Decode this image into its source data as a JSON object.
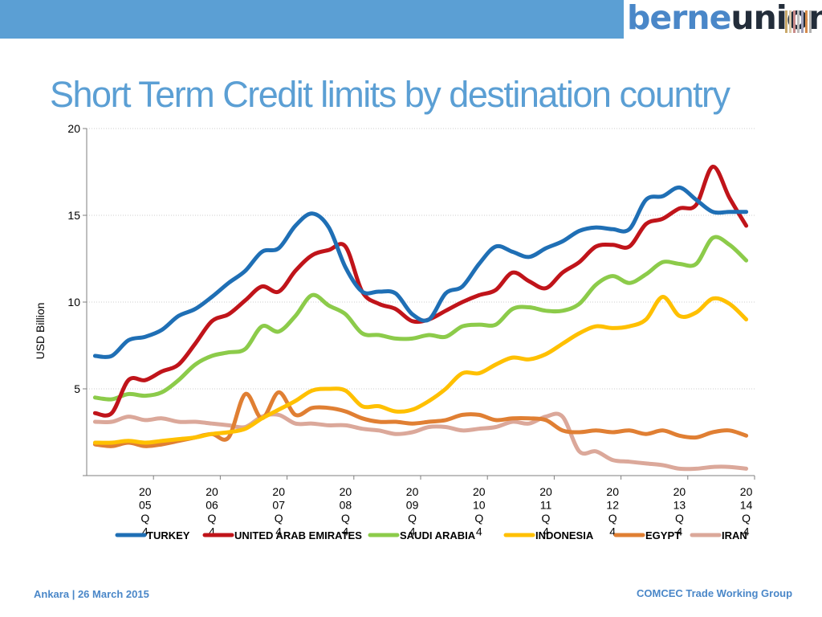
{
  "header": {
    "logo_text_a": "berne",
    "logo_text_b": "union",
    "stripe_colors": [
      "#c9a96b",
      "#d9c7a7",
      "#c98a8a",
      "#bbbbbb",
      "#9e9eb8",
      "#d48a4a",
      "#b0b0b0"
    ]
  },
  "slide_title": "Short Term Credit limits by destination country",
  "footer": {
    "left": "Ankara | 26 March 2015",
    "right": "COMCEC Trade Working Group"
  },
  "chart_data": {
    "type": "line",
    "title": "",
    "ylabel": "USD Billion",
    "xlabel": "",
    "ylim": [
      0,
      20
    ],
    "yticks": [
      5,
      10,
      15,
      20
    ],
    "grid": true,
    "legend_position": "bottom",
    "x": [
      "2005 Q1",
      "2005 Q2",
      "2005 Q3",
      "2005 Q4",
      "2006 Q1",
      "2006 Q2",
      "2006 Q3",
      "2006 Q4",
      "2007 Q1",
      "2007 Q2",
      "2007 Q3",
      "2007 Q4",
      "2008 Q1",
      "2008 Q2",
      "2008 Q3",
      "2008 Q4",
      "2009 Q1",
      "2009 Q2",
      "2009 Q3",
      "2009 Q4",
      "2010 Q1",
      "2010 Q2",
      "2010 Q3",
      "2010 Q4",
      "2011 Q1",
      "2011 Q2",
      "2011 Q3",
      "2011 Q4",
      "2012 Q1",
      "2012 Q2",
      "2012 Q3",
      "2012 Q4",
      "2013 Q1",
      "2013 Q2",
      "2013 Q3",
      "2013 Q4",
      "2014 Q1",
      "2014 Q2",
      "2014 Q3",
      "2014 Q4"
    ],
    "x_tick_labels": [
      {
        "index": 3,
        "lines": [
          "20",
          "05",
          "Q",
          "4"
        ]
      },
      {
        "index": 7,
        "lines": [
          "20",
          "06",
          "Q",
          "4"
        ]
      },
      {
        "index": 11,
        "lines": [
          "20",
          "07",
          "Q",
          "4"
        ]
      },
      {
        "index": 15,
        "lines": [
          "20",
          "08",
          "Q",
          "4"
        ]
      },
      {
        "index": 19,
        "lines": [
          "20",
          "09",
          "Q",
          "4"
        ]
      },
      {
        "index": 23,
        "lines": [
          "20",
          "10",
          "Q",
          "4"
        ]
      },
      {
        "index": 27,
        "lines": [
          "20",
          "11",
          "Q",
          "4"
        ]
      },
      {
        "index": 31,
        "lines": [
          "20",
          "12",
          "Q",
          "4"
        ]
      },
      {
        "index": 35,
        "lines": [
          "20",
          "13",
          "Q",
          "4"
        ]
      },
      {
        "index": 39,
        "lines": [
          "20",
          "14",
          "Q",
          "4"
        ]
      }
    ],
    "series": [
      {
        "name": "TURKEY",
        "color": "#1f6fb5",
        "values": [
          6.9,
          6.9,
          7.8,
          8.0,
          8.4,
          9.2,
          9.6,
          10.3,
          11.1,
          11.8,
          12.9,
          13.1,
          14.4,
          15.1,
          14.3,
          12.0,
          10.6,
          10.6,
          10.5,
          9.3,
          9.0,
          10.5,
          10.9,
          12.2,
          13.2,
          12.9,
          12.6,
          13.1,
          13.5,
          14.1,
          14.3,
          14.2,
          14.2,
          15.9,
          16.1,
          16.6,
          15.9,
          15.2,
          15.2,
          15.2
        ]
      },
      {
        "name": "UNITED ARAB EMIRATES",
        "color": "#c0141a",
        "values": [
          3.6,
          3.6,
          5.5,
          5.5,
          6.0,
          6.4,
          7.6,
          8.9,
          9.3,
          10.1,
          10.9,
          10.6,
          11.8,
          12.7,
          13.0,
          13.2,
          10.6,
          9.9,
          9.6,
          8.9,
          9.0,
          9.5,
          10.0,
          10.4,
          10.7,
          11.7,
          11.2,
          10.8,
          11.7,
          12.3,
          13.2,
          13.3,
          13.2,
          14.5,
          14.8,
          15.4,
          15.6,
          17.8,
          16.0,
          14.4
        ]
      },
      {
        "name": "SAUDI ARABIA",
        "color": "#8ccb4a",
        "values": [
          4.5,
          4.4,
          4.7,
          4.6,
          4.8,
          5.5,
          6.4,
          6.9,
          7.1,
          7.3,
          8.6,
          8.3,
          9.2,
          10.4,
          9.8,
          9.3,
          8.2,
          8.1,
          7.9,
          7.9,
          8.1,
          8.0,
          8.6,
          8.7,
          8.7,
          9.6,
          9.7,
          9.5,
          9.5,
          9.9,
          11.0,
          11.5,
          11.1,
          11.6,
          12.3,
          12.2,
          12.2,
          13.7,
          13.3,
          12.4
        ]
      },
      {
        "name": "INDONESIA",
        "color": "#ffc000",
        "values": [
          1.9,
          1.9,
          2.0,
          1.9,
          2.0,
          2.1,
          2.2,
          2.4,
          2.5,
          2.7,
          3.3,
          3.8,
          4.3,
          4.9,
          5.0,
          4.9,
          4.0,
          4.0,
          3.7,
          3.8,
          4.3,
          5.0,
          5.9,
          5.9,
          6.4,
          6.8,
          6.7,
          7.0,
          7.6,
          8.2,
          8.6,
          8.5,
          8.6,
          9.0,
          10.3,
          9.2,
          9.4,
          10.2,
          9.9,
          9.0
        ]
      },
      {
        "name": "EGYPT",
        "color": "#e07f33",
        "values": [
          1.8,
          1.7,
          1.9,
          1.7,
          1.8,
          2.0,
          2.2,
          2.4,
          2.2,
          4.7,
          3.3,
          4.8,
          3.5,
          3.9,
          3.9,
          3.7,
          3.3,
          3.1,
          3.1,
          3.0,
          3.1,
          3.2,
          3.5,
          3.5,
          3.2,
          3.3,
          3.3,
          3.2,
          2.6,
          2.5,
          2.6,
          2.5,
          2.6,
          2.4,
          2.6,
          2.3,
          2.2,
          2.5,
          2.6,
          2.3
        ]
      },
      {
        "name": "IRAN",
        "color": "#dba89a",
        "values": [
          3.1,
          3.1,
          3.4,
          3.2,
          3.3,
          3.1,
          3.1,
          3.0,
          2.9,
          2.8,
          3.4,
          3.5,
          3.0,
          3.0,
          2.9,
          2.9,
          2.7,
          2.6,
          2.4,
          2.5,
          2.8,
          2.8,
          2.6,
          2.7,
          2.8,
          3.1,
          3.0,
          3.4,
          3.4,
          1.4,
          1.4,
          0.9,
          0.8,
          0.7,
          0.6,
          0.4,
          0.4,
          0.5,
          0.5,
          0.4
        ]
      }
    ]
  }
}
